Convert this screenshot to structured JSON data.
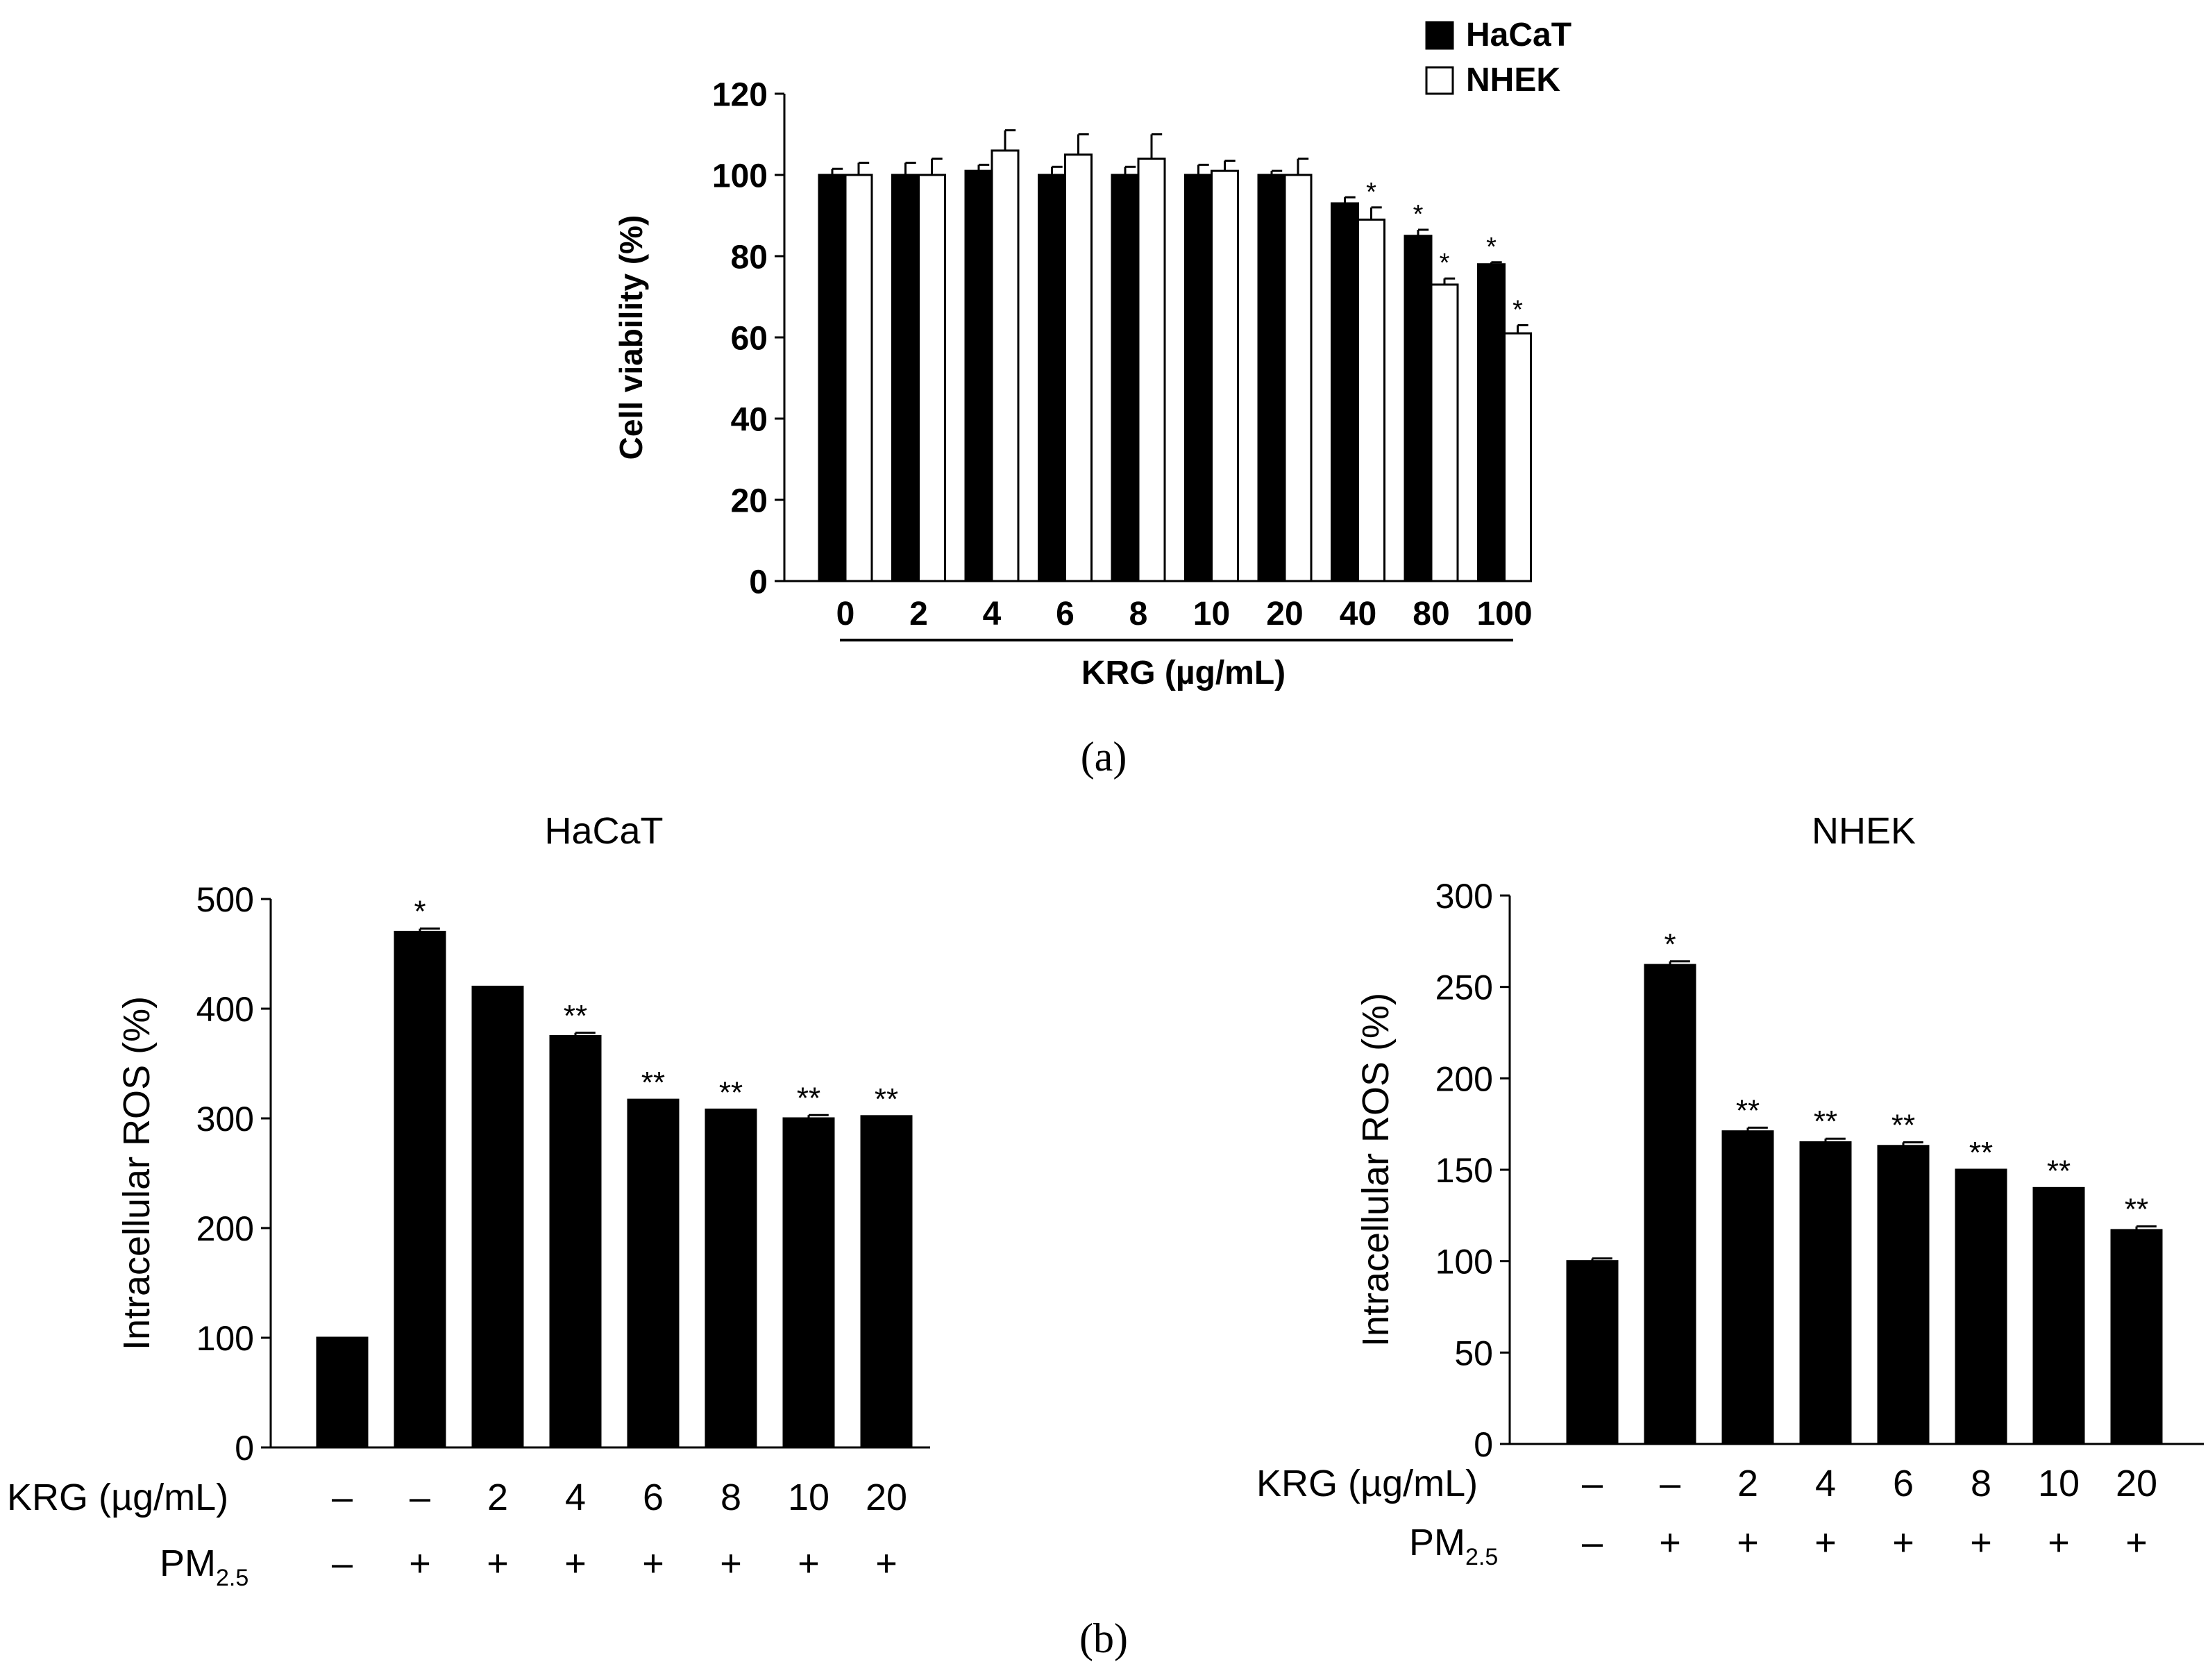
{
  "panel_a_label": "(a)",
  "panel_b_label": "(b)",
  "chart_data": [
    {
      "id": "a",
      "type": "bar",
      "title": "",
      "xlabel": "KRG (µg/mL)",
      "ylabel": "Cell viability (%)",
      "ylim": [
        0,
        120
      ],
      "yticks": [
        0,
        20,
        40,
        60,
        80,
        100,
        120
      ],
      "categories": [
        "0",
        "2",
        "4",
        "6",
        "8",
        "10",
        "20",
        "40",
        "80",
        "100"
      ],
      "legend": [
        "HaCaT",
        "NHEK"
      ],
      "legend_position": "top-right",
      "series": [
        {
          "name": "HaCaT",
          "color": "#000000",
          "values": [
            100,
            100,
            101,
            100,
            100,
            100,
            100,
            93,
            85,
            78
          ],
          "errors": [
            1.5,
            3,
            1.5,
            2,
            2,
            2.5,
            1,
            1.5,
            1.5,
            0.5
          ],
          "annotations": [
            "",
            "",
            "",
            "",
            "",
            "",
            "",
            "",
            "*",
            "*"
          ]
        },
        {
          "name": "NHEK",
          "color": "#ffffff",
          "values": [
            100,
            100,
            106,
            105,
            104,
            101,
            100,
            89,
            73,
            61
          ],
          "errors": [
            3,
            4,
            5,
            5,
            6,
            2.5,
            4,
            3,
            1.5,
            2
          ],
          "annotations": [
            "",
            "",
            "",
            "",
            "",
            "",
            "",
            "*",
            "*",
            "*"
          ]
        }
      ]
    },
    {
      "id": "b-hacat",
      "type": "bar",
      "title": "HaCaT",
      "ylabel": "Intracellular ROS (%)",
      "ylim": [
        0,
        500
      ],
      "yticks": [
        0,
        100,
        200,
        300,
        400,
        500
      ],
      "row_labels": [
        "KRG  (µg/mL)",
        "PM"
      ],
      "pm_subscript": "2.5",
      "categories": [
        "–",
        "–",
        "2",
        "4",
        "6",
        "8",
        "10",
        "20"
      ],
      "pm": [
        "–",
        "+",
        "+",
        "+",
        "+",
        "+",
        "+",
        "+"
      ],
      "series": [
        {
          "name": "HaCaT",
          "color": "#000000",
          "values": [
            100,
            470,
            420,
            375,
            317,
            308,
            300,
            302
          ],
          "errors": [
            0,
            3,
            0,
            3,
            0,
            0,
            3,
            0
          ],
          "annotations": [
            "",
            "*",
            "",
            "**",
            "**",
            "**",
            "**",
            "**"
          ]
        }
      ]
    },
    {
      "id": "b-nhek",
      "type": "bar",
      "title": "NHEK",
      "ylabel": "Intracellular ROS (%)",
      "ylim": [
        0,
        300
      ],
      "yticks": [
        0,
        50,
        100,
        150,
        200,
        250,
        300
      ],
      "row_labels": [
        "KRG  (µg/mL)",
        "PM"
      ],
      "pm_subscript": "2.5",
      "categories": [
        "–",
        "–",
        "2",
        "4",
        "6",
        "8",
        "10",
        "20"
      ],
      "pm": [
        "–",
        "+",
        "+",
        "+",
        "+",
        "+",
        "+",
        "+"
      ],
      "series": [
        {
          "name": "NHEK",
          "color": "#000000",
          "values": [
            100,
            262,
            171,
            165,
            163,
            150,
            140,
            117
          ],
          "errors": [
            1.5,
            2,
            2,
            2,
            2,
            0,
            0,
            2
          ],
          "annotations": [
            "",
            "*",
            "**",
            "**",
            "**",
            "**",
            "**",
            "**"
          ]
        }
      ]
    }
  ]
}
